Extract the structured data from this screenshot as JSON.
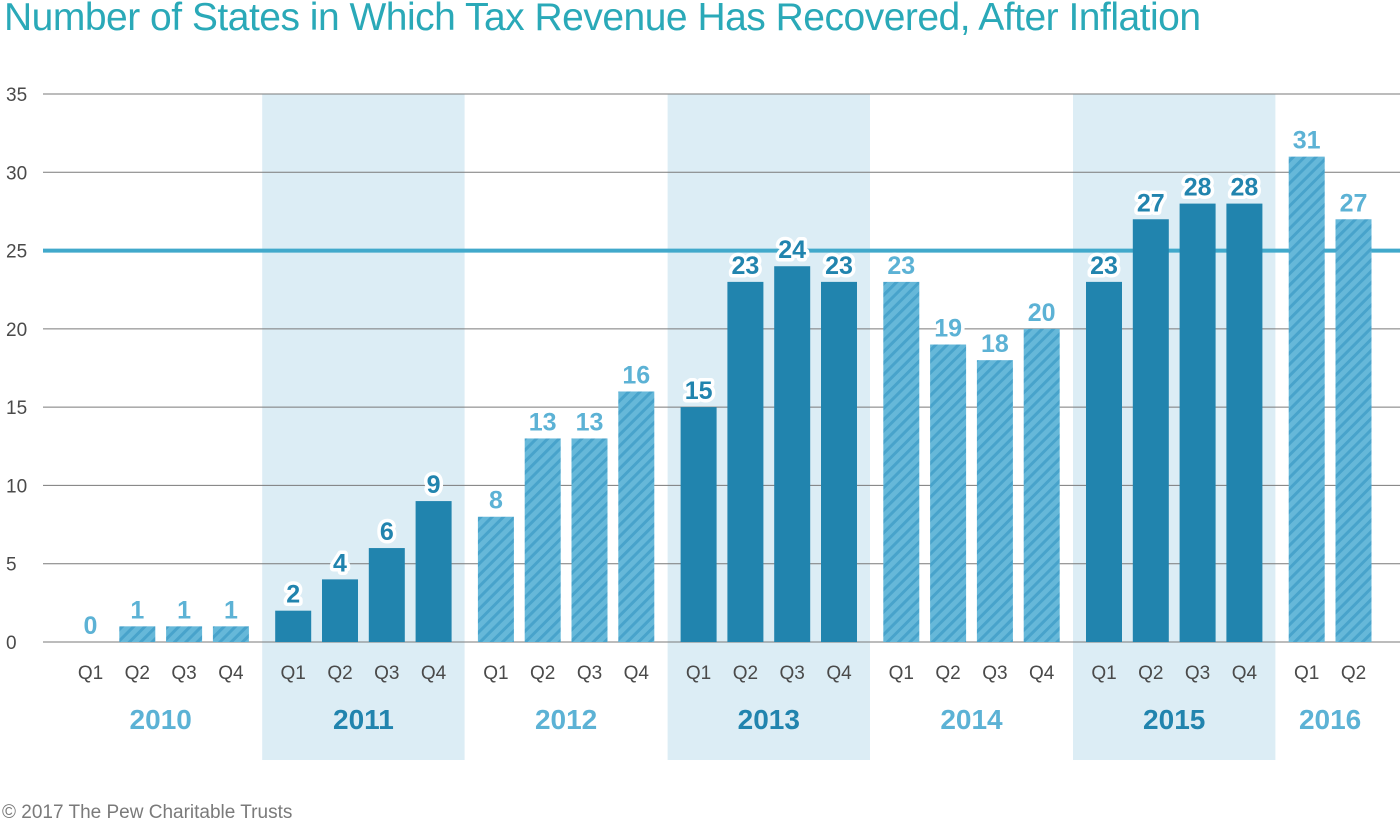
{
  "colors": {
    "title": "#2aa9b8",
    "solid": "#2184ae",
    "hatched": "#5cb2d5",
    "band": "#dcedf5",
    "reference_line": "#41a9cb",
    "grid": "#7a7a7a",
    "axis_text": "#4a4a4a"
  },
  "copyright": "© 2017 The Pew Charitable Trusts",
  "chart_data": {
    "type": "bar",
    "title": "Number of States in Which Tax Revenue Has Recovered, After Inflation",
    "xlabel": "",
    "ylabel": "",
    "ylim": [
      0,
      35
    ],
    "yticks": [
      0,
      5,
      10,
      15,
      20,
      25,
      30,
      35
    ],
    "grid": true,
    "reference_line": 25,
    "years": [
      {
        "year": "2010",
        "style": "hatched",
        "band": false,
        "quarters": [
          "Q1",
          "Q2",
          "Q3",
          "Q4"
        ],
        "values": [
          0,
          1,
          1,
          1
        ]
      },
      {
        "year": "2011",
        "style": "solid",
        "band": true,
        "quarters": [
          "Q1",
          "Q2",
          "Q3",
          "Q4"
        ],
        "values": [
          2,
          4,
          6,
          9
        ]
      },
      {
        "year": "2012",
        "style": "hatched",
        "band": false,
        "quarters": [
          "Q1",
          "Q2",
          "Q3",
          "Q4"
        ],
        "values": [
          8,
          13,
          13,
          16
        ]
      },
      {
        "year": "2013",
        "style": "solid",
        "band": true,
        "quarters": [
          "Q1",
          "Q2",
          "Q3",
          "Q4"
        ],
        "values": [
          15,
          23,
          24,
          23
        ]
      },
      {
        "year": "2014",
        "style": "hatched",
        "band": false,
        "quarters": [
          "Q1",
          "Q2",
          "Q3",
          "Q4"
        ],
        "values": [
          23,
          19,
          18,
          20
        ]
      },
      {
        "year": "2015",
        "style": "solid",
        "band": true,
        "quarters": [
          "Q1",
          "Q2",
          "Q3",
          "Q4"
        ],
        "values": [
          23,
          27,
          28,
          28
        ]
      },
      {
        "year": "2016",
        "style": "hatched",
        "band": false,
        "quarters": [
          "Q1",
          "Q2"
        ],
        "values": [
          31,
          27
        ]
      }
    ]
  }
}
